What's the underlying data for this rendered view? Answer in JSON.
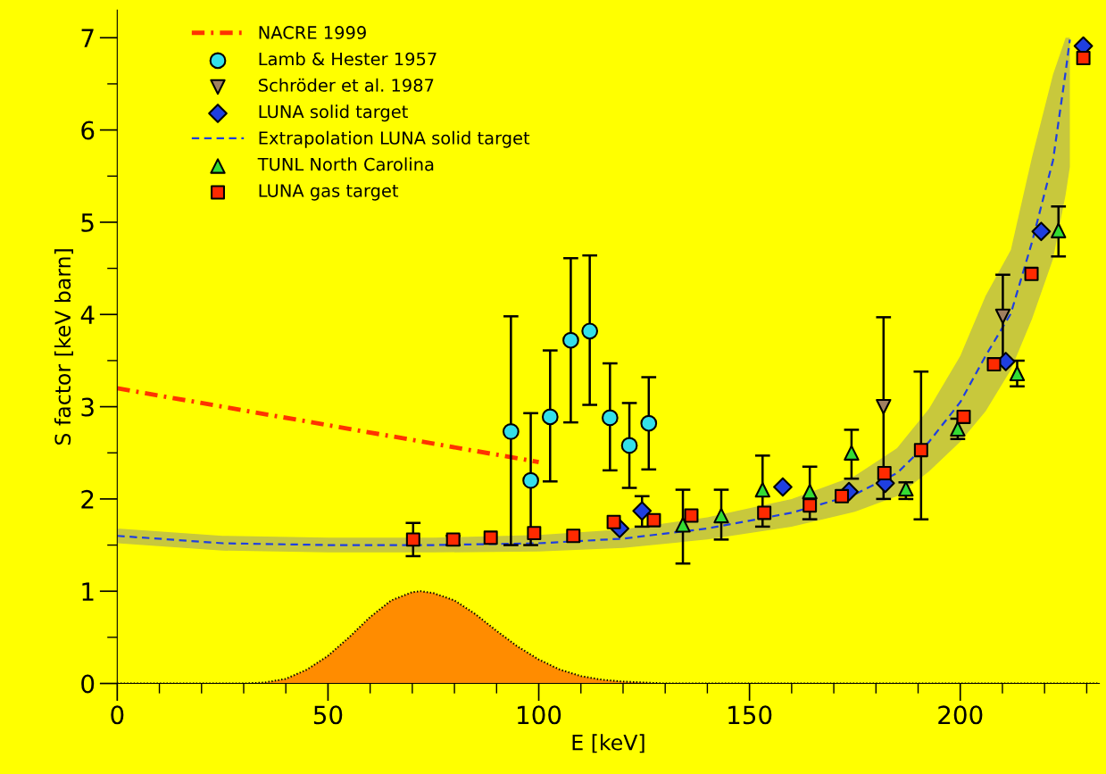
{
  "chart_data": {
    "type": "scatter",
    "xlabel": "E [keV]",
    "ylabel": "S factor [keV barn]",
    "xlim": [
      0,
      233
    ],
    "ylim": [
      0,
      7.3
    ],
    "xticks": [
      0,
      50,
      100,
      150,
      200
    ],
    "yticks": [
      0,
      1,
      2,
      3,
      4,
      5,
      6,
      7
    ],
    "grid": false,
    "legend": "top left",
    "series": [
      {
        "name": "NACRE 1999",
        "type": "line",
        "line_style": "dashdot",
        "marker": "none",
        "color": "#ff3300",
        "x": [
          0,
          100
        ],
        "values": [
          3.2,
          2.4
        ]
      },
      {
        "name": "Lamb & Hester 1957",
        "marker": "circle",
        "color": "#33e0ea",
        "x": [
          93.4,
          98.1,
          102.7,
          107.6,
          112.1,
          116.9,
          121.5,
          126.1
        ],
        "values": [
          2.73,
          2.2,
          2.89,
          3.72,
          3.82,
          2.88,
          2.58,
          2.82
        ],
        "errors": [
          [
            1.5,
            3.98
          ],
          [
            1.5,
            2.93
          ],
          [
            2.19,
            3.61
          ],
          [
            2.83,
            4.61
          ],
          [
            3.02,
            4.64
          ],
          [
            2.31,
            3.47
          ],
          [
            2.12,
            3.04
          ],
          [
            2.32,
            3.32
          ]
        ]
      },
      {
        "name": "Schröder et al. 1987",
        "marker": "triangle_down",
        "color": "#a08060",
        "x": [
          181.8,
          210.1
        ],
        "values": [
          3.0,
          3.98
        ],
        "errors": [
          [
            2.0,
            3.97
          ],
          [
            3.5,
            4.43
          ]
        ]
      },
      {
        "name": "LUNA solid target",
        "marker": "diamond",
        "color": "#1f3fe0",
        "x": [
          119.2,
          124.5,
          157.9,
          173.6,
          182.2,
          210.8,
          219.2,
          229.2
        ],
        "values": [
          1.68,
          1.87,
          2.13,
          2.08,
          2.17,
          3.49,
          4.9,
          6.91
        ],
        "errors": [
          null,
          [
            1.7,
            2.03
          ],
          null,
          null,
          null,
          null,
          null,
          null
        ]
      },
      {
        "name": "Extrapolation LUNA solid target",
        "type": "line",
        "line_style": "dashed",
        "marker": "none",
        "color": "#1f3fe0",
        "x": [
          0,
          25,
          50,
          75,
          100,
          120,
          140,
          160,
          175,
          185,
          192.6,
          200,
          206,
          212,
          217,
          222,
          225,
          226
        ],
        "values": [
          1.6,
          1.52,
          1.5,
          1.5,
          1.52,
          1.57,
          1.68,
          1.85,
          2.05,
          2.28,
          2.62,
          3.05,
          3.55,
          4.01,
          4.78,
          5.67,
          6.63,
          6.98
        ],
        "lower": [
          1.52,
          1.44,
          1.42,
          1.42,
          1.43,
          1.47,
          1.56,
          1.7,
          1.86,
          2.03,
          2.3,
          2.62,
          2.95,
          3.4,
          3.95,
          4.6,
          5.3,
          5.6
        ],
        "upper": [
          1.68,
          1.6,
          1.58,
          1.58,
          1.61,
          1.67,
          1.8,
          2.0,
          2.25,
          2.55,
          2.98,
          3.55,
          4.2,
          4.7,
          5.7,
          6.6,
          7.0,
          7.0
        ]
      },
      {
        "name": "TUNL North Carolina",
        "marker": "triangle",
        "color": "#33dd33",
        "x": [
          134.2,
          143.3,
          153.1,
          164.3,
          174.2,
          187.1,
          199.4,
          213.5,
          223.3
        ],
        "values": [
          1.72,
          1.82,
          2.1,
          2.08,
          2.5,
          2.11,
          2.76,
          3.36,
          4.91
        ],
        "errors": [
          [
            1.3,
            2.1
          ],
          [
            1.56,
            2.1
          ],
          [
            1.7,
            2.47
          ],
          [
            1.78,
            2.35
          ],
          [
            2.22,
            2.75
          ],
          [
            2.0,
            2.18
          ],
          [
            2.65,
            2.87
          ],
          [
            3.22,
            3.5
          ],
          [
            4.63,
            5.17
          ]
        ]
      },
      {
        "name": "LUNA gas target",
        "marker": "square",
        "color": "#ff2a00",
        "x": [
          70.2,
          79.7,
          88.6,
          98.9,
          108.2,
          117.8,
          127.3,
          136.2,
          153.5,
          164.3,
          171.9,
          182.0,
          190.7,
          200.8,
          208.0,
          216.9,
          229.2
        ],
        "values": [
          1.56,
          1.56,
          1.58,
          1.63,
          1.6,
          1.75,
          1.77,
          1.82,
          1.85,
          1.93,
          2.03,
          2.28,
          2.53,
          2.89,
          3.46,
          4.44,
          6.78
        ],
        "errors": [
          [
            1.38,
            1.74
          ],
          [
            1.5,
            1.6
          ],
          null,
          null,
          null,
          null,
          null,
          null,
          null,
          null,
          null,
          null,
          [
            1.78,
            3.38
          ],
          null,
          null,
          null,
          null
        ]
      },
      {
        "type": "area",
        "line_style": "dotted",
        "color": "#ff8c00",
        "x": [
          0,
          30,
          35,
          40,
          45,
          50,
          55,
          60,
          65,
          70,
          72,
          75,
          80,
          85,
          90,
          95,
          100,
          105,
          110,
          115,
          120,
          130,
          233
        ],
        "values": [
          0,
          0,
          0.01,
          0.05,
          0.15,
          0.3,
          0.5,
          0.72,
          0.9,
          0.99,
          1.0,
          0.98,
          0.9,
          0.75,
          0.57,
          0.4,
          0.26,
          0.15,
          0.08,
          0.04,
          0.02,
          0,
          0
        ]
      }
    ]
  }
}
